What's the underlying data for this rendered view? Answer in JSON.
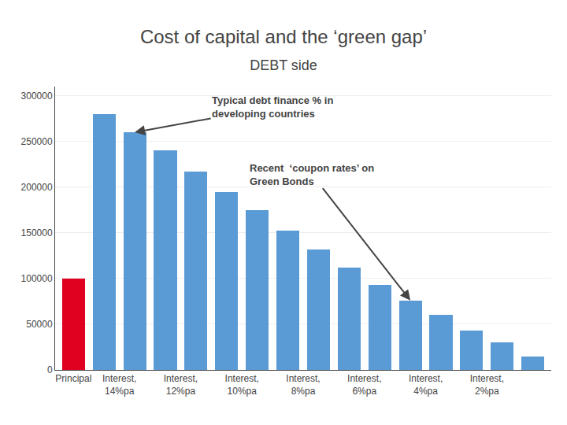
{
  "chart_data": {
    "type": "bar",
    "title": "Cost of capital and the ‘green gap’",
    "subtitle": "DEBT side",
    "categories": [
      "Principal",
      "Interest,\n14%pa",
      null,
      "Interest,\n12%pa",
      null,
      "Interest,\n10%pa",
      null,
      "Interest,\n8%pa",
      null,
      "Interest,\n6%pa",
      null,
      "Interest,\n4%pa",
      null,
      "Interest,\n2%pa",
      null,
      null
    ],
    "values": [
      100000,
      280000,
      260000,
      240000,
      217000,
      195000,
      175000,
      152000,
      132000,
      112000,
      93000,
      76000,
      60000,
      43000,
      30000,
      15000
    ],
    "colors": [
      "#e00020",
      "#5b9bd5",
      "#5b9bd5",
      "#5b9bd5",
      "#5b9bd5",
      "#5b9bd5",
      "#5b9bd5",
      "#5b9bd5",
      "#5b9bd5",
      "#5b9bd5",
      "#5b9bd5",
      "#5b9bd5",
      "#5b9bd5",
      "#5b9bd5",
      "#5b9bd5",
      "#5b9bd5"
    ],
    "ylim": [
      0,
      310000
    ],
    "yticks": [
      0,
      50000,
      100000,
      150000,
      200000,
      250000,
      300000
    ],
    "grid": true,
    "annotations": [
      {
        "text": "Typical debt finance % in\ndeveloping countries"
      },
      {
        "text": "Recent  ‘coupon rates’ on\nGreen Bonds"
      }
    ]
  }
}
